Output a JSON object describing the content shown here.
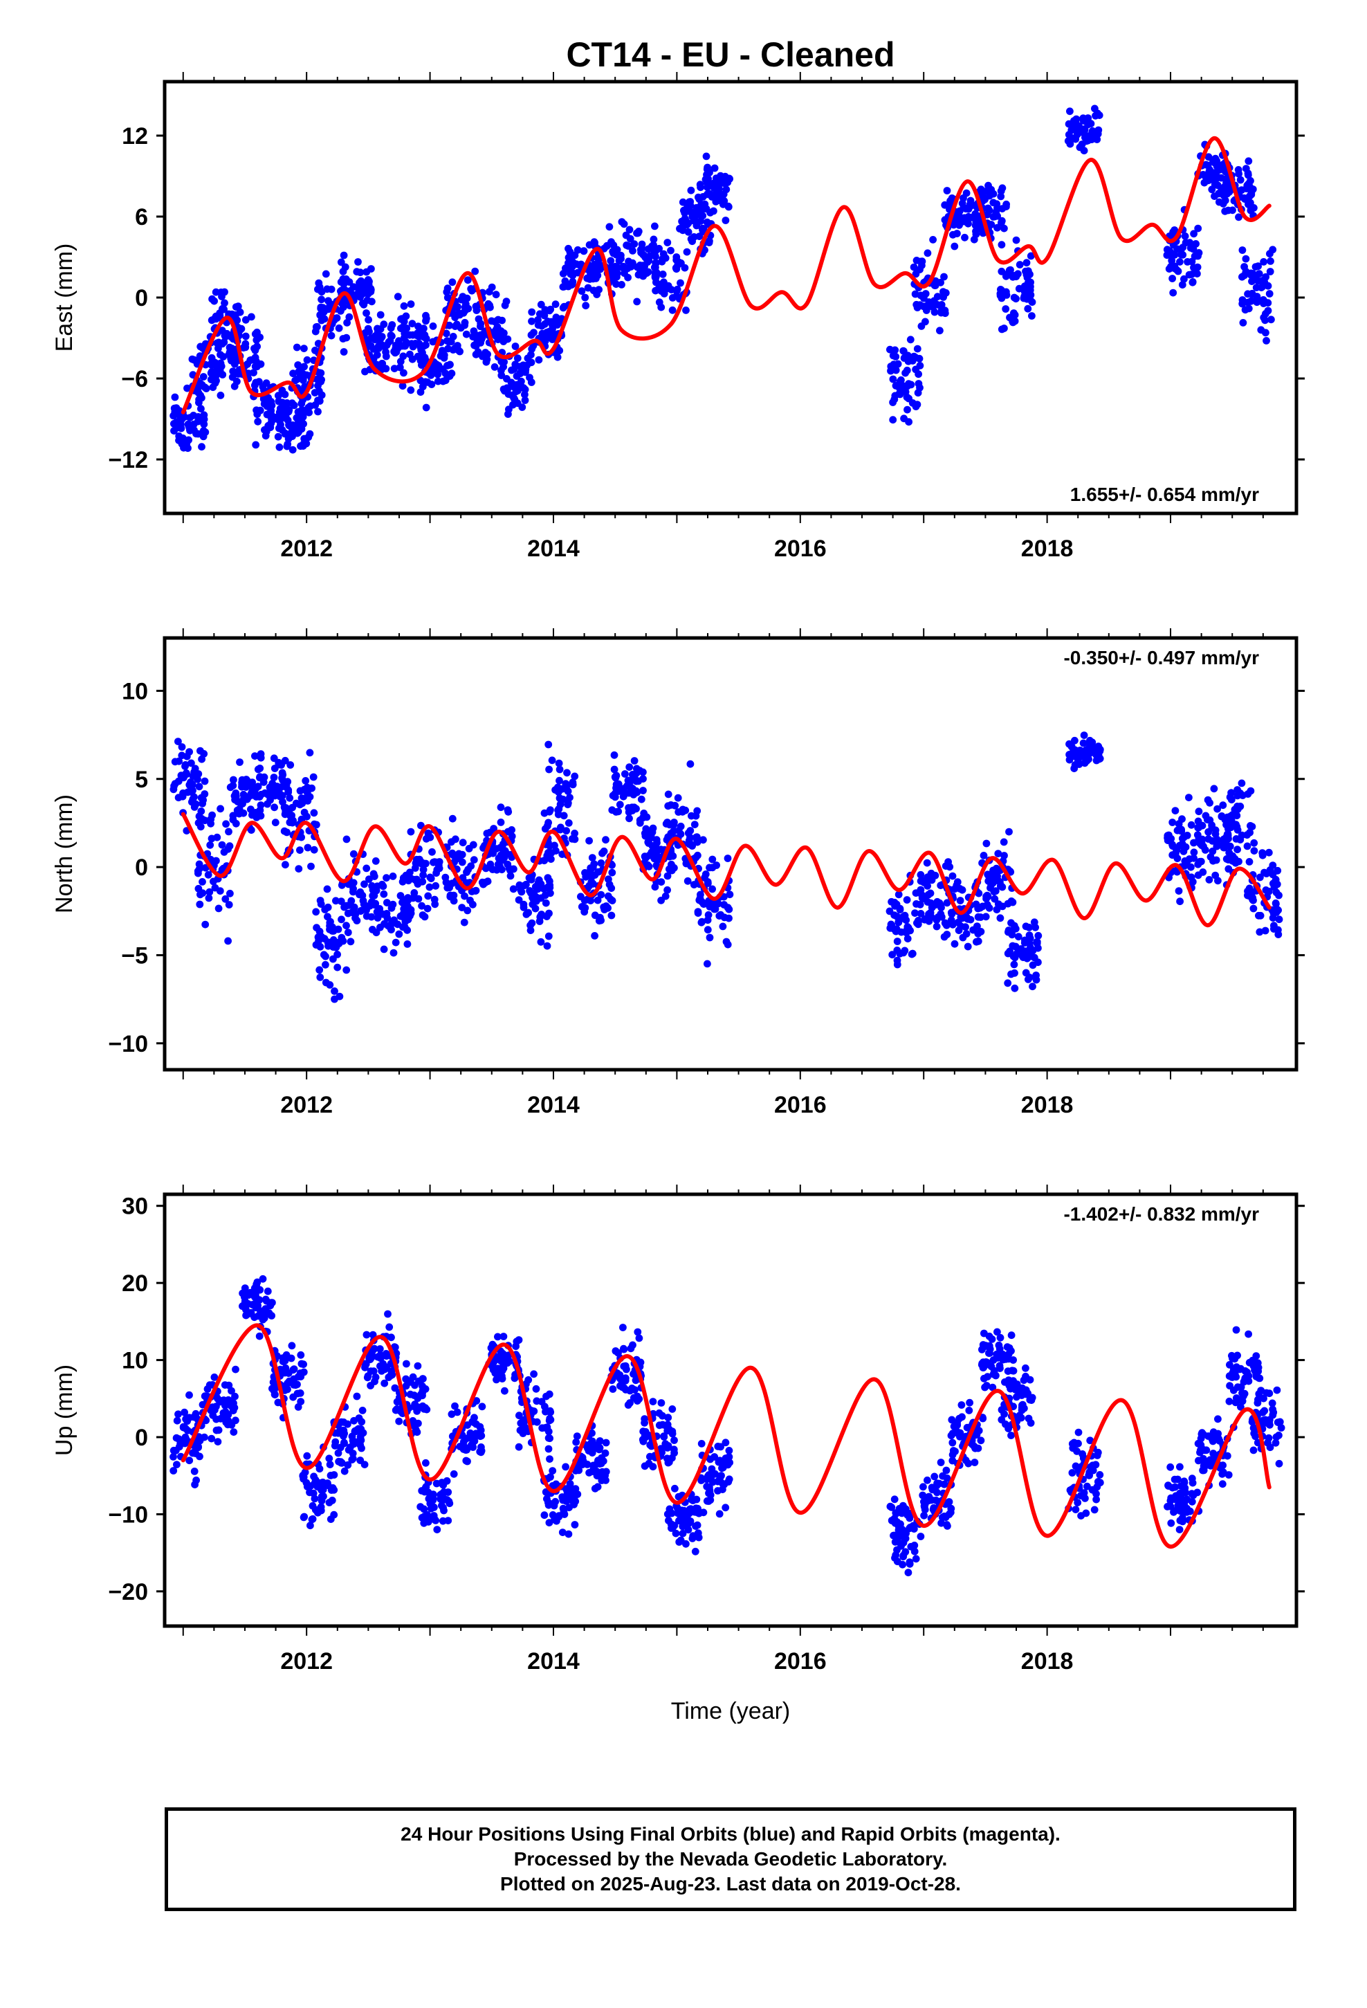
{
  "chart_data": {
    "type": "scatter",
    "title": "CT14  - EU - Cleaned",
    "xlabel": "Time (year)",
    "xlim": [
      2010.85,
      2020.02
    ],
    "x_ticks": [
      2012,
      2014,
      2016,
      2018
    ],
    "colors": {
      "observations": "#0000ff",
      "model": "#ff0000",
      "frame": "#000000"
    },
    "data_gap": [
      2015.5,
      2016.8
    ],
    "panels": [
      {
        "id": "east",
        "ylabel": "East (mm)",
        "ylim": [
          -16,
          16
        ],
        "y_ticks": [
          -12,
          -6,
          0,
          6,
          12
        ],
        "rate_text": "1.655+/- 0.654 mm/yr",
        "rate_position": "bottom-right",
        "model_curve": {
          "x": [
            2011.0,
            2011.35,
            2011.55,
            2011.85,
            2012.0,
            2012.3,
            2012.55,
            2012.95,
            2013.3,
            2013.55,
            2013.85,
            2014.0,
            2014.35,
            2014.55,
            2014.95,
            2015.3,
            2015.6,
            2015.85,
            2016.05,
            2016.35,
            2016.6,
            2016.85,
            2017.05,
            2017.35,
            2017.6,
            2017.85,
            2018.0,
            2018.35,
            2018.6,
            2018.85,
            2019.05,
            2019.35,
            2019.6,
            2019.8
          ],
          "y": [
            -8.5,
            -1.5,
            -7.0,
            -6.3,
            -7.0,
            0.3,
            -5.3,
            -5.5,
            1.8,
            -4.2,
            -3.2,
            -3.8,
            3.6,
            -2.4,
            -2.0,
            5.3,
            -0.6,
            0.4,
            -0.5,
            6.7,
            1.0,
            1.8,
            1.2,
            8.6,
            2.8,
            3.8,
            2.9,
            10.2,
            4.4,
            5.4,
            4.5,
            11.8,
            6.0,
            6.8
          ]
        },
        "observation_clusters": [
          {
            "x": 2011.05,
            "y": -9.0,
            "spread": 2.8
          },
          {
            "x": 2011.2,
            "y": -5.5,
            "spread": 3.0
          },
          {
            "x": 2011.35,
            "y": -2.0,
            "spread": 3.0
          },
          {
            "x": 2011.5,
            "y": -4.5,
            "spread": 3.0
          },
          {
            "x": 2011.7,
            "y": -8.0,
            "spread": 3.0
          },
          {
            "x": 2011.9,
            "y": -9.5,
            "spread": 2.5
          },
          {
            "x": 2012.0,
            "y": -6.0,
            "spread": 3.5
          },
          {
            "x": 2012.2,
            "y": -1.0,
            "spread": 3.5
          },
          {
            "x": 2012.4,
            "y": 1.0,
            "spread": 3.5
          },
          {
            "x": 2012.6,
            "y": -3.5,
            "spread": 3.5
          },
          {
            "x": 2012.85,
            "y": -3.0,
            "spread": 4.0
          },
          {
            "x": 2013.05,
            "y": -5.0,
            "spread": 4.0
          },
          {
            "x": 2013.25,
            "y": -1.0,
            "spread": 4.0
          },
          {
            "x": 2013.5,
            "y": -2.0,
            "spread": 4.0
          },
          {
            "x": 2013.7,
            "y": -6.0,
            "spread": 3.5
          },
          {
            "x": 2013.95,
            "y": -2.5,
            "spread": 3.5
          },
          {
            "x": 2014.2,
            "y": 1.5,
            "spread": 3.5
          },
          {
            "x": 2014.45,
            "y": 2.5,
            "spread": 3.0
          },
          {
            "x": 2014.7,
            "y": 3.0,
            "spread": 3.0
          },
          {
            "x": 2014.95,
            "y": 1.5,
            "spread": 3.5
          },
          {
            "x": 2015.15,
            "y": 5.5,
            "spread": 3.0
          },
          {
            "x": 2015.3,
            "y": 8.0,
            "spread": 2.5
          },
          {
            "x": 2016.85,
            "y": -6.0,
            "spread": 4.5
          },
          {
            "x": 2017.05,
            "y": 0.5,
            "spread": 4.0
          },
          {
            "x": 2017.3,
            "y": 6.0,
            "spread": 3.0
          },
          {
            "x": 2017.55,
            "y": 6.5,
            "spread": 3.0
          },
          {
            "x": 2017.75,
            "y": 0.5,
            "spread": 4.5
          },
          {
            "x": 2018.3,
            "y": 12.5,
            "spread": 2.0
          },
          {
            "x": 2019.1,
            "y": 3.0,
            "spread": 4.0
          },
          {
            "x": 2019.35,
            "y": 9.5,
            "spread": 2.5
          },
          {
            "x": 2019.55,
            "y": 8.0,
            "spread": 3.0
          },
          {
            "x": 2019.7,
            "y": 0.5,
            "spread": 4.5
          }
        ]
      },
      {
        "id": "north",
        "ylabel": "North (mm)",
        "ylim": [
          -11.5,
          13.0
        ],
        "y_ticks": [
          -10,
          -5,
          0,
          5,
          10
        ],
        "rate_text": "-0.350+/- 0.497 mm/yr",
        "rate_position": "top-right",
        "model_curve": {
          "x": [
            2011.0,
            2011.3,
            2011.55,
            2011.8,
            2012.0,
            2012.3,
            2012.55,
            2012.8,
            2013.0,
            2013.3,
            2013.55,
            2013.8,
            2014.0,
            2014.3,
            2014.55,
            2014.8,
            2015.0,
            2015.3,
            2015.55,
            2015.8,
            2016.05,
            2016.3,
            2016.55,
            2016.8,
            2017.05,
            2017.3,
            2017.55,
            2017.8,
            2018.05,
            2018.3,
            2018.55,
            2018.8,
            2019.05,
            2019.3,
            2019.55,
            2019.8
          ],
          "y": [
            3.0,
            -0.5,
            2.5,
            0.5,
            2.5,
            -0.8,
            2.3,
            0.2,
            2.3,
            -1.2,
            2.0,
            -0.3,
            2.0,
            -1.6,
            1.7,
            -0.7,
            1.6,
            -1.8,
            1.2,
            -1.0,
            1.1,
            -2.3,
            0.9,
            -1.3,
            0.8,
            -2.6,
            0.5,
            -1.5,
            0.4,
            -2.9,
            0.2,
            -1.9,
            0.1,
            -3.3,
            -0.1,
            -2.3
          ]
        },
        "observation_clusters": [
          {
            "x": 2011.05,
            "y": 5.0,
            "spread": 3.5
          },
          {
            "x": 2011.25,
            "y": 0.0,
            "spread": 4.0
          },
          {
            "x": 2011.5,
            "y": 4.0,
            "spread": 2.5
          },
          {
            "x": 2011.75,
            "y": 4.5,
            "spread": 2.5
          },
          {
            "x": 2011.95,
            "y": 2.5,
            "spread": 4.0
          },
          {
            "x": 2012.2,
            "y": -4.0,
            "spread": 4.0
          },
          {
            "x": 2012.45,
            "y": -1.5,
            "spread": 3.5
          },
          {
            "x": 2012.7,
            "y": -2.5,
            "spread": 3.0
          },
          {
            "x": 2012.95,
            "y": 0.0,
            "spread": 4.0
          },
          {
            "x": 2013.25,
            "y": -0.5,
            "spread": 3.5
          },
          {
            "x": 2013.55,
            "y": 1.0,
            "spread": 3.5
          },
          {
            "x": 2013.85,
            "y": -1.5,
            "spread": 3.5
          },
          {
            "x": 2014.05,
            "y": 3.0,
            "spread": 4.5
          },
          {
            "x": 2014.35,
            "y": -1.0,
            "spread": 3.5
          },
          {
            "x": 2014.6,
            "y": 4.5,
            "spread": 3.0
          },
          {
            "x": 2014.85,
            "y": 1.0,
            "spread": 3.5
          },
          {
            "x": 2015.05,
            "y": 2.0,
            "spread": 4.0
          },
          {
            "x": 2015.3,
            "y": -2.0,
            "spread": 4.0
          },
          {
            "x": 2016.85,
            "y": -3.0,
            "spread": 3.0
          },
          {
            "x": 2017.1,
            "y": -1.5,
            "spread": 3.0
          },
          {
            "x": 2017.35,
            "y": -2.5,
            "spread": 3.0
          },
          {
            "x": 2017.6,
            "y": -1.0,
            "spread": 3.5
          },
          {
            "x": 2017.8,
            "y": -5.0,
            "spread": 3.0
          },
          {
            "x": 2018.3,
            "y": 6.5,
            "spread": 1.0
          },
          {
            "x": 2019.1,
            "y": 0.5,
            "spread": 3.5
          },
          {
            "x": 2019.35,
            "y": 2.0,
            "spread": 3.5
          },
          {
            "x": 2019.55,
            "y": 2.0,
            "spread": 4.0
          },
          {
            "x": 2019.75,
            "y": -1.5,
            "spread": 4.0
          }
        ]
      },
      {
        "id": "up",
        "ylabel": "Up (mm)",
        "ylim": [
          -24.5,
          31.5
        ],
        "y_ticks": [
          -20,
          -10,
          0,
          10,
          20,
          30
        ],
        "rate_text": "-1.402+/- 0.832 mm/yr",
        "rate_position": "top-right",
        "model_curve": {
          "x": [
            2011.0,
            2011.6,
            2012.0,
            2012.6,
            2013.0,
            2013.6,
            2014.0,
            2014.6,
            2015.0,
            2015.6,
            2016.0,
            2016.6,
            2017.0,
            2017.6,
            2018.0,
            2018.6,
            2019.0,
            2019.6,
            2019.8
          ],
          "y": [
            -3.0,
            14.5,
            -4.0,
            13.0,
            -5.5,
            12.0,
            -7.0,
            10.5,
            -8.5,
            9.0,
            -9.8,
            7.5,
            -11.5,
            6.0,
            -12.8,
            4.8,
            -14.2,
            3.5,
            -6.5
          ]
        },
        "observation_clusters": [
          {
            "x": 2011.05,
            "y": 0.0,
            "spread": 7.0
          },
          {
            "x": 2011.3,
            "y": 4.0,
            "spread": 6.0
          },
          {
            "x": 2011.6,
            "y": 17.0,
            "spread": 5.0
          },
          {
            "x": 2011.85,
            "y": 8.0,
            "spread": 6.0
          },
          {
            "x": 2012.1,
            "y": -7.0,
            "spread": 6.0
          },
          {
            "x": 2012.35,
            "y": 0.0,
            "spread": 6.0
          },
          {
            "x": 2012.6,
            "y": 10.0,
            "spread": 6.0
          },
          {
            "x": 2012.85,
            "y": 5.0,
            "spread": 6.0
          },
          {
            "x": 2013.05,
            "y": -8.0,
            "spread": 6.0
          },
          {
            "x": 2013.3,
            "y": 0.0,
            "spread": 6.0
          },
          {
            "x": 2013.6,
            "y": 10.0,
            "spread": 6.0
          },
          {
            "x": 2013.85,
            "y": 3.0,
            "spread": 6.0
          },
          {
            "x": 2014.05,
            "y": -8.0,
            "spread": 6.0
          },
          {
            "x": 2014.3,
            "y": -3.0,
            "spread": 6.0
          },
          {
            "x": 2014.6,
            "y": 8.0,
            "spread": 6.0
          },
          {
            "x": 2014.85,
            "y": 0.0,
            "spread": 6.0
          },
          {
            "x": 2015.05,
            "y": -10.0,
            "spread": 6.0
          },
          {
            "x": 2015.3,
            "y": -5.0,
            "spread": 6.0
          },
          {
            "x": 2016.85,
            "y": -12.0,
            "spread": 6.0
          },
          {
            "x": 2017.1,
            "y": -8.0,
            "spread": 6.0
          },
          {
            "x": 2017.35,
            "y": 0.0,
            "spread": 6.0
          },
          {
            "x": 2017.6,
            "y": 10.0,
            "spread": 6.0
          },
          {
            "x": 2017.75,
            "y": 5.0,
            "spread": 6.0
          },
          {
            "x": 2018.3,
            "y": -5.0,
            "spread": 7.0
          },
          {
            "x": 2019.1,
            "y": -8.0,
            "spread": 6.0
          },
          {
            "x": 2019.35,
            "y": -2.0,
            "spread": 6.0
          },
          {
            "x": 2019.6,
            "y": 8.0,
            "spread": 7.0
          },
          {
            "x": 2019.78,
            "y": 2.0,
            "spread": 7.0
          }
        ]
      }
    ]
  },
  "footer": {
    "line1": "24 Hour Positions Using Final Orbits (blue) and Rapid Orbits (magenta).",
    "line2": "Processed by the Nevada Geodetic Laboratory.",
    "line3": "Plotted on 2025-Aug-23. Last data on 2019-Oct-28."
  }
}
